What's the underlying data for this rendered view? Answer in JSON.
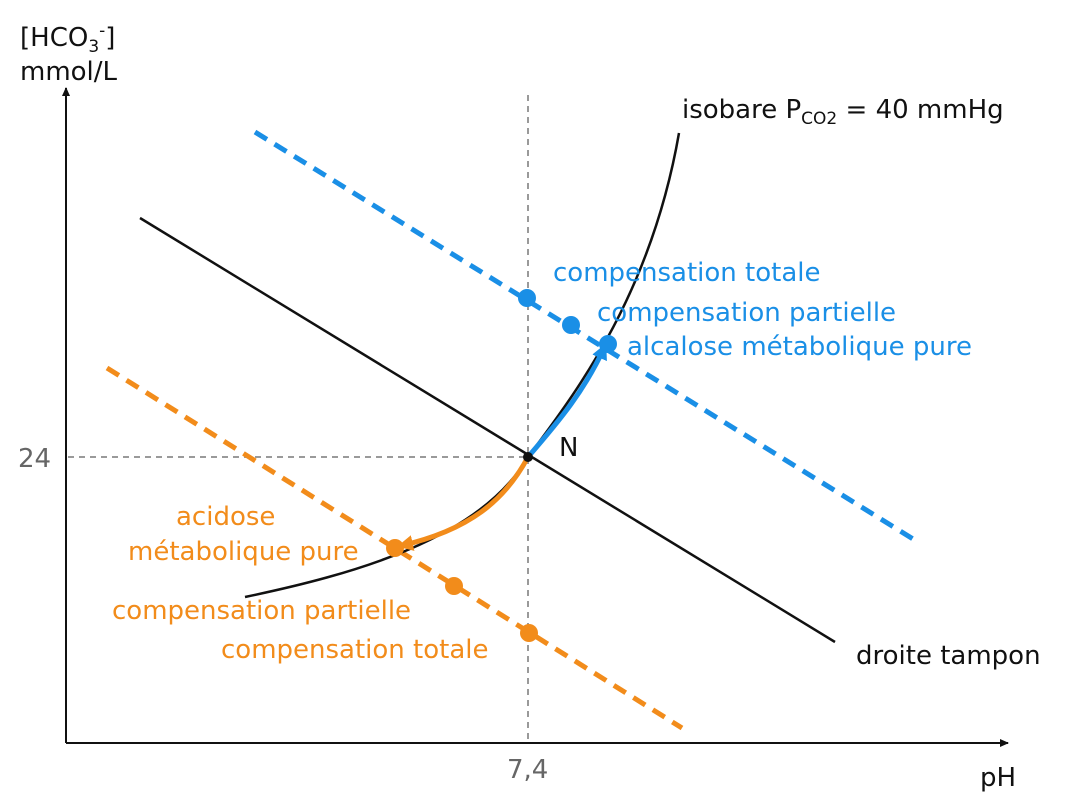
{
  "colors": {
    "blue": "#1a8fe6",
    "orange": "#f28c1b",
    "black": "#111111",
    "gray": "#9a9a9a",
    "tick_text": "#666666"
  },
  "axes": {
    "y_label_line1_main": "[HCO",
    "y_label_line1_sub": "3",
    "y_label_line1_sup": "-",
    "y_label_line1_end": "]",
    "y_label_line2": "mmol/L",
    "x_label": "pH",
    "x_tick": "7,4",
    "y_tick": "24"
  },
  "lines": {
    "isobare_main": "isobare P",
    "isobare_sub": "CO2",
    "isobare_end": " = 40 mmHg",
    "droite": "droite tampon"
  },
  "point_n": "N",
  "alkalosis": {
    "total": "compensation totale",
    "partial": "compensation partielle",
    "pure": "alcalose métabolique pure"
  },
  "acidosis": {
    "pure_line1": "acidose",
    "pure_line2": "métabolique pure",
    "partial": "compensation partielle",
    "total": "compensation totale"
  }
}
